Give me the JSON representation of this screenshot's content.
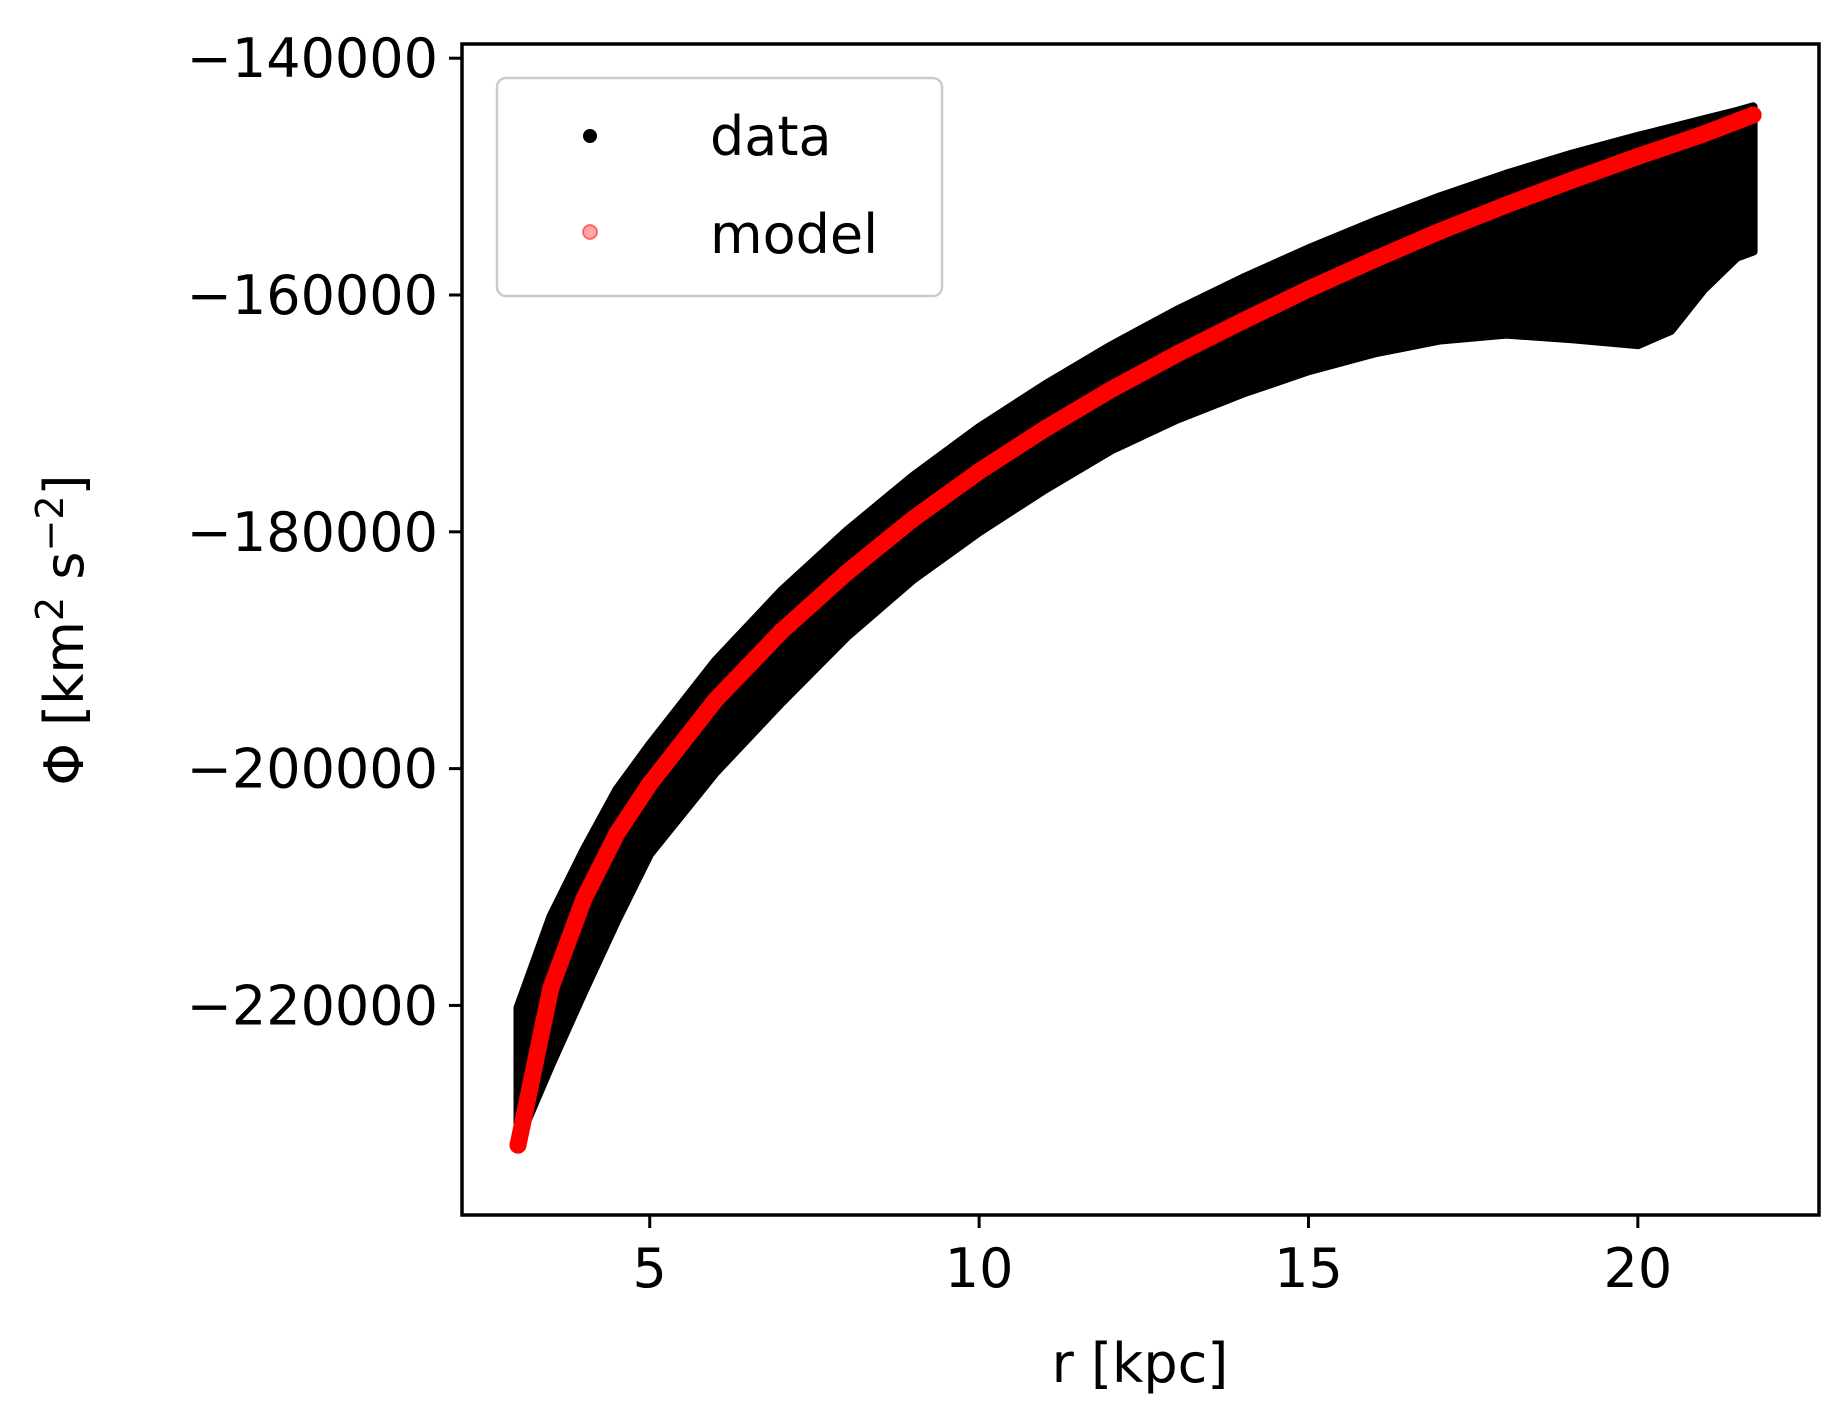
{
  "chart_data": {
    "type": "scatter",
    "title": "",
    "xlabel": "r [kpc]",
    "ylabel_base": "Φ [km",
    "ylabel_sup1": "2",
    "ylabel_mid": " s",
    "ylabel_sup2": "−2",
    "ylabel_end": "]",
    "xlim": [
      2.15,
      22.75
    ],
    "ylim": [
      -237700,
      -138800
    ],
    "xticks": [
      5,
      10,
      15,
      20
    ],
    "xtick_labels": [
      "5",
      "10",
      "15",
      "20"
    ],
    "yticks": [
      -140000,
      -160000,
      -180000,
      -200000,
      -220000
    ],
    "ytick_labels": [
      "−140000",
      "−160000",
      "−180000",
      "−200000",
      "−220000"
    ],
    "grid": false,
    "legend_position": "upper-left",
    "colors": {
      "data": "#000000",
      "model": "#ff0000"
    },
    "series": [
      {
        "name": "data",
        "marker": "dot",
        "color": "#000000",
        "band": {
          "r": [
            3.0,
            3.5,
            4.0,
            4.5,
            5.0,
            6.0,
            7.0,
            8.0,
            9.0,
            10.0,
            11.0,
            12.0,
            13.0,
            14.0,
            15.0,
            16.0,
            17.0,
            18.0,
            19.0,
            20.0,
            20.5,
            21.0,
            21.5,
            21.75
          ],
          "upper": [
            -220200,
            -212500,
            -206900,
            -201800,
            -198000,
            -190900,
            -185000,
            -179900,
            -175300,
            -171200,
            -167600,
            -164300,
            -161300,
            -158600,
            -156100,
            -153800,
            -151700,
            -149800,
            -148100,
            -146600,
            -145900,
            -145200,
            -144500,
            -144100
          ],
          "lower": [
            -231500,
            -225000,
            -218800,
            -212800,
            -207200,
            -200300,
            -194400,
            -188800,
            -184000,
            -180000,
            -176400,
            -173100,
            -170500,
            -168300,
            -166400,
            -164900,
            -163800,
            -163300,
            -163700,
            -164200,
            -163000,
            -159500,
            -156800,
            -156300
          ]
        }
      },
      {
        "name": "model",
        "marker": "dot",
        "color": "#ff0000",
        "r": [
          3.0,
          3.5,
          4.0,
          4.5,
          5.0,
          6.0,
          7.0,
          8.0,
          9.0,
          10.0,
          11.0,
          12.0,
          13.0,
          14.0,
          15.0,
          16.0,
          17.0,
          18.0,
          19.0,
          20.0,
          21.0,
          21.75
        ],
        "phi": [
          -231800,
          -218500,
          -211000,
          -205500,
          -201300,
          -194200,
          -188400,
          -183400,
          -178900,
          -174900,
          -171300,
          -168000,
          -165000,
          -162200,
          -159500,
          -157000,
          -154600,
          -152400,
          -150300,
          -148300,
          -146400,
          -144800
        ]
      }
    ]
  }
}
